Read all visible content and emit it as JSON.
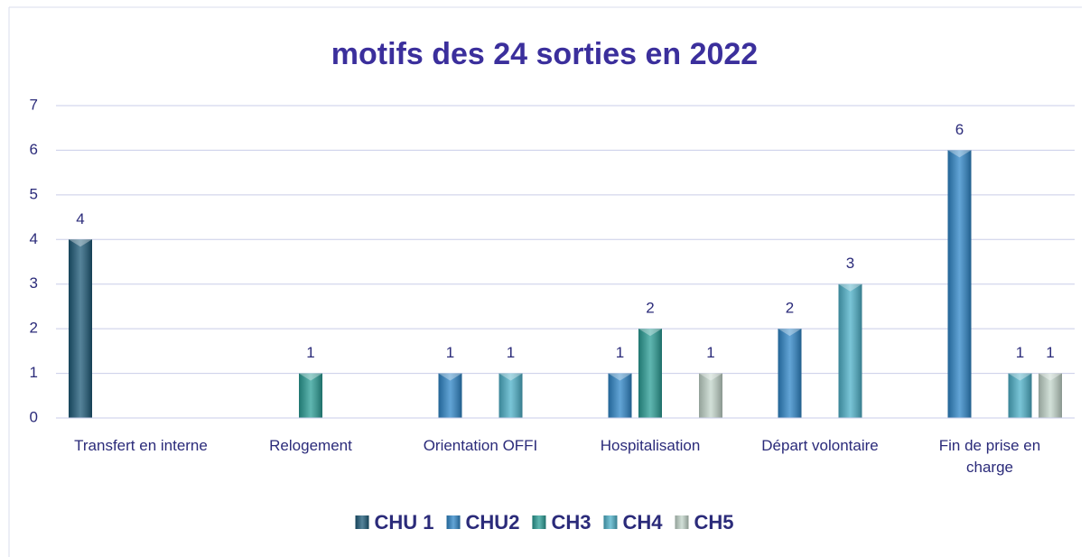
{
  "chart_data": {
    "type": "bar",
    "title": "motifs des 24 sorties en 2022",
    "categories": [
      "Transfert en interne",
      "Relogement",
      "Orientation OFFI",
      "Hospitalisation",
      "Départ volontaire",
      "Fin de prise en charge"
    ],
    "series": [
      {
        "name": "CHU 1",
        "color": "#1d5a78",
        "values": [
          4,
          null,
          null,
          null,
          null,
          null
        ]
      },
      {
        "name": "CHU2",
        "color": "#2e86c8",
        "values": [
          null,
          null,
          1,
          1,
          2,
          6
        ]
      },
      {
        "name": "CH3",
        "color": "#2a9e96",
        "values": [
          null,
          1,
          null,
          2,
          null,
          null
        ]
      },
      {
        "name": "CH4",
        "color": "#4db1c9",
        "values": [
          null,
          null,
          1,
          null,
          3,
          1
        ]
      },
      {
        "name": "CH5",
        "color": "#c3d6cb",
        "values": [
          null,
          null,
          null,
          1,
          null,
          1
        ]
      }
    ],
    "ylim": [
      0,
      7
    ],
    "yticks": [
      0,
      1,
      2,
      3,
      4,
      5,
      6,
      7
    ],
    "grid": true,
    "legend": "bottom"
  }
}
